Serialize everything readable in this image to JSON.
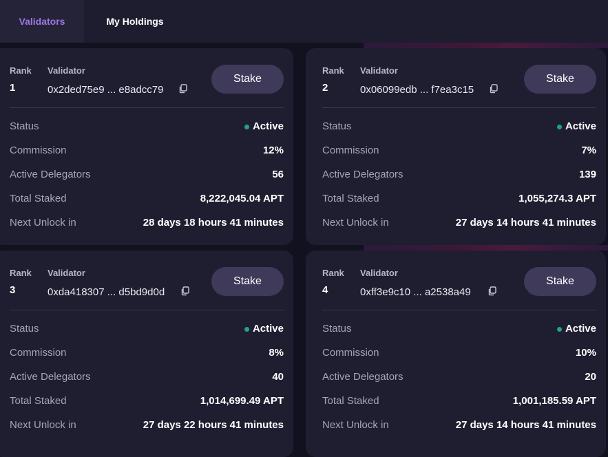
{
  "tabs": [
    {
      "label": "Validators",
      "active": true
    },
    {
      "label": "My Holdings",
      "active": false
    }
  ],
  "header_labels": {
    "rank": "Rank",
    "validator": "Validator"
  },
  "row_labels": {
    "status": "Status",
    "commission": "Commission",
    "active_delegators": "Active Delegators",
    "total_staked": "Total Staked",
    "next_unlock": "Next Unlock in"
  },
  "stake_label": "Stake",
  "colors": {
    "accent": "#9a78e0",
    "active_status": "#1fa38a",
    "button": "#3f3a5a",
    "card": "#1f1e30"
  },
  "icons": {
    "copy": "copy-icon",
    "status": "status-dot-icon"
  },
  "validators": [
    {
      "rank": "1",
      "address": "0x2ded75e9 ... e8adcc79",
      "status": "Active",
      "commission": "12%",
      "active_delegators": "56",
      "total_staked": "8,222,045.04 APT",
      "next_unlock": "28 days 18 hours 41 minutes"
    },
    {
      "rank": "2",
      "address": "0x06099edb ... f7ea3c15",
      "status": "Active",
      "commission": "7%",
      "active_delegators": "139",
      "total_staked": "1,055,274.3 APT",
      "next_unlock": "27 days 14 hours 41 minutes"
    },
    {
      "rank": "3",
      "address": "0xda418307 ... d5bd9d0d",
      "status": "Active",
      "commission": "8%",
      "active_delegators": "40",
      "total_staked": "1,014,699.49 APT",
      "next_unlock": "27 days 22 hours 41 minutes"
    },
    {
      "rank": "4",
      "address": "0xff3e9c10 ... a2538a49",
      "status": "Active",
      "commission": "10%",
      "active_delegators": "20",
      "total_staked": "1,001,185.59 APT",
      "next_unlock": "27 days 14 hours 41 minutes"
    }
  ]
}
